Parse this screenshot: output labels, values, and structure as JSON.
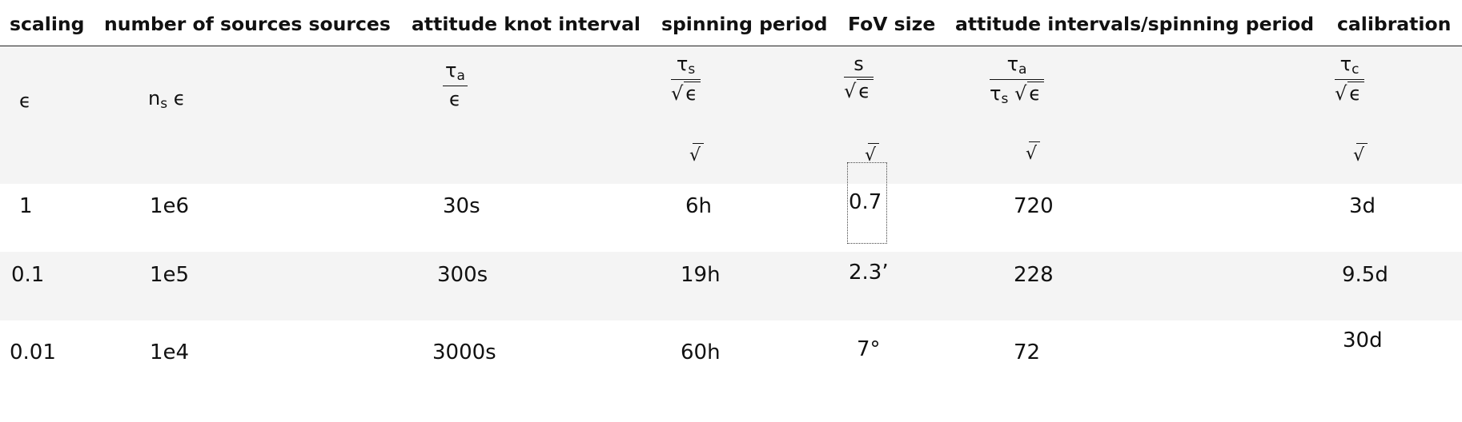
{
  "headers": {
    "scaling": "scaling",
    "sources": "number of sources sources",
    "knot": "attitude knot interval",
    "spin": "spinning period",
    "fov": "FoV size",
    "ratio": "attitude intervals/spinning period",
    "calib": "calibration"
  },
  "formulas": {
    "epsilon": "ϵ",
    "n": "n",
    "s": "s",
    "tau": "τ",
    "a": "a",
    "c": "c",
    "sqrt": "√",
    "S": "s"
  },
  "rows": [
    {
      "scaling": "1",
      "sources": "1e6",
      "knot": "30s",
      "spin": "6h",
      "fov": "0.7",
      "fov_mark": "",
      "ratio": "720",
      "calib": "3d"
    },
    {
      "scaling": "0.1",
      "sources": "1e5",
      "knot": "300s",
      "spin": "19h",
      "fov": "2.3",
      "fov_mark": "ʼ",
      "ratio": "228",
      "calib": "9.5d"
    },
    {
      "scaling": "0.01",
      "sources": "1e4",
      "knot": "3000s",
      "spin": "60h",
      "fov": "7",
      "fov_mark": "°",
      "ratio": "72",
      "calib": "30d"
    }
  ]
}
